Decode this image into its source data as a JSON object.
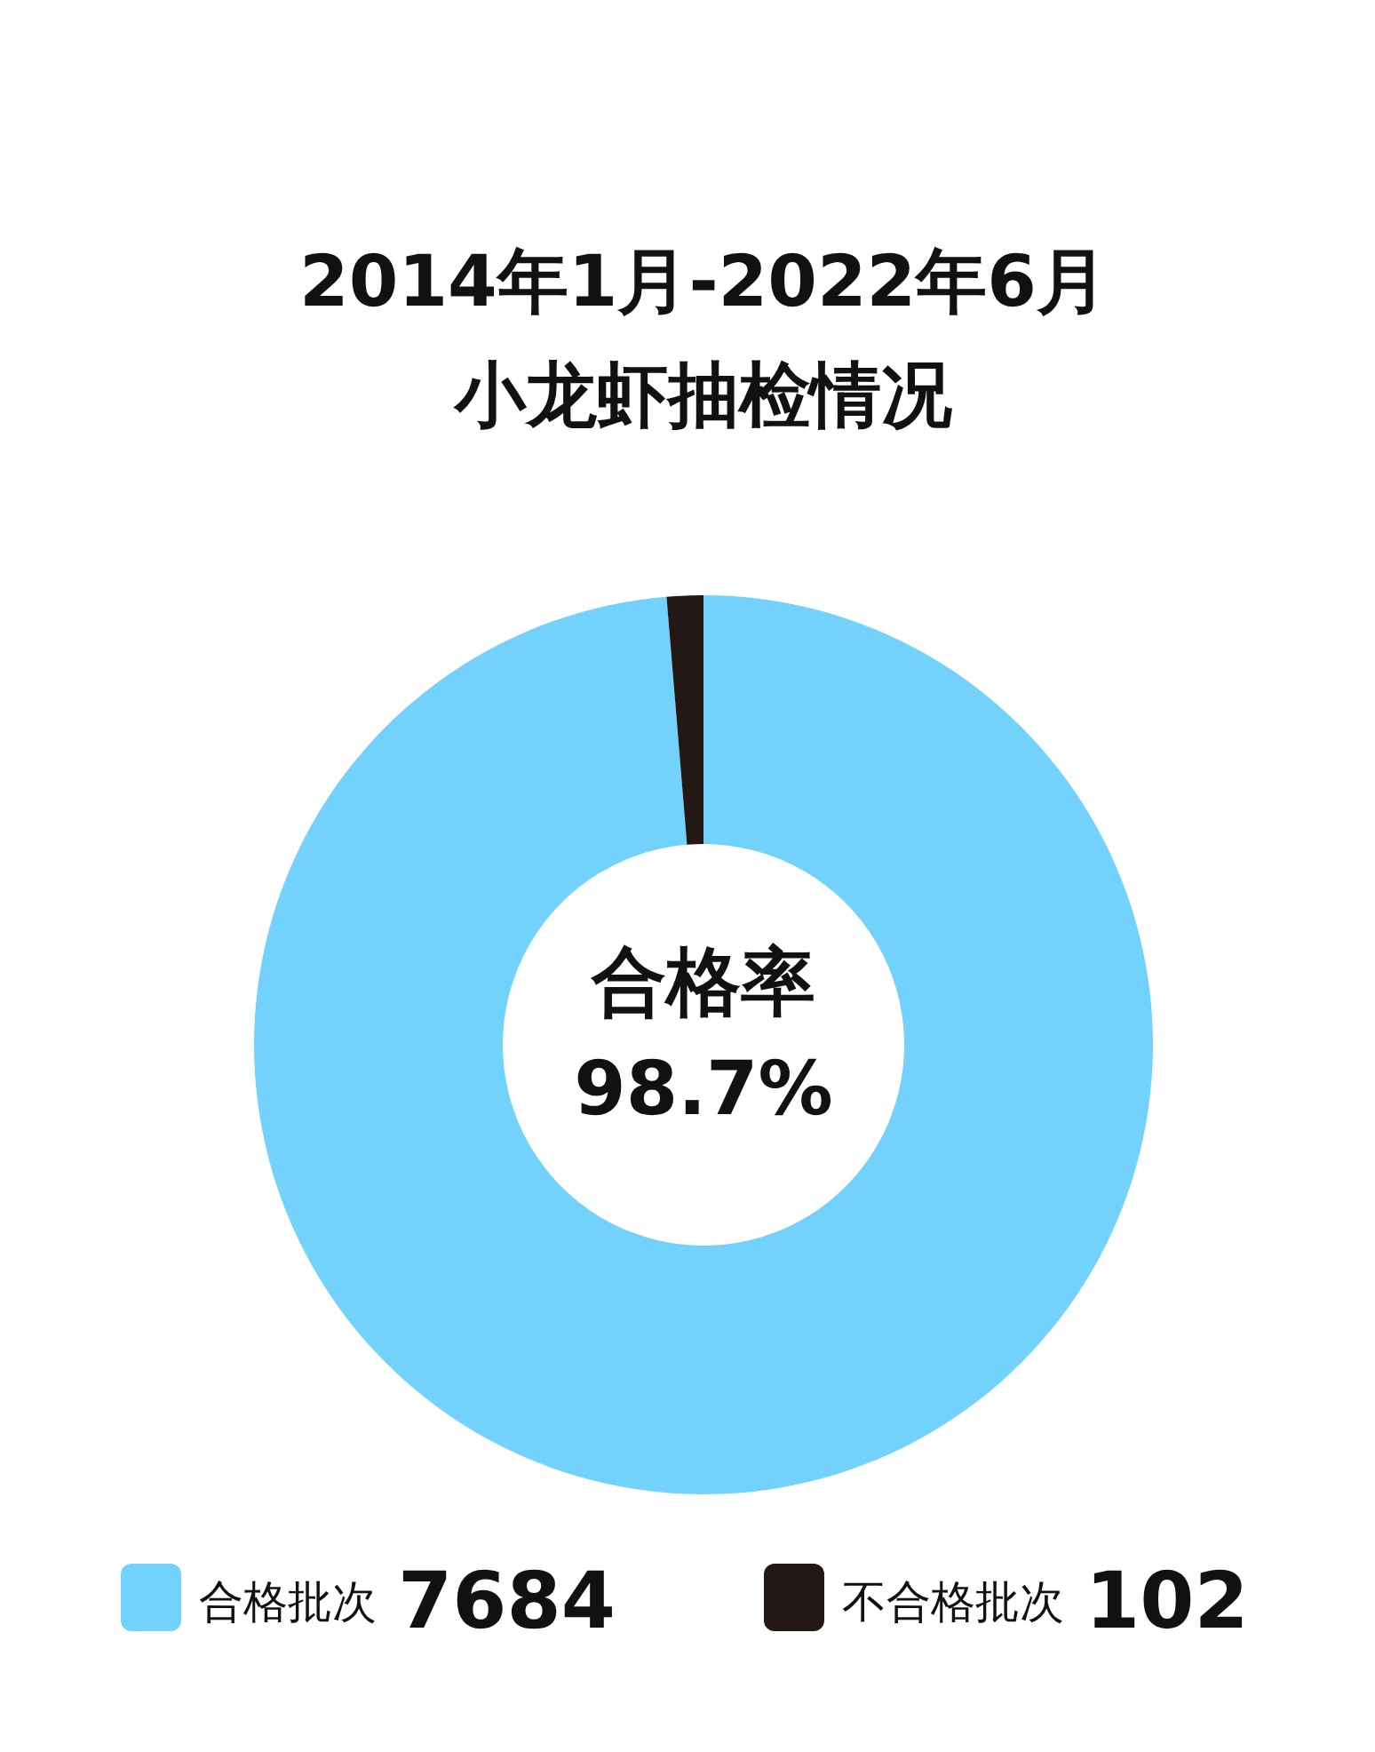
{
  "chart_data": {
    "type": "donut",
    "title": "2014年1月-2022年6月",
    "subtitle": "小龙虾抽检情况",
    "categories": [
      "合格批次",
      "不合格批次"
    ],
    "values": [
      7684,
      102
    ],
    "colors": [
      "#73d2fb",
      "#231815"
    ],
    "value_labels": [
      "7684",
      "102"
    ],
    "annotations": [
      "合格率",
      "98.7%"
    ],
    "legend": "bottom"
  }
}
